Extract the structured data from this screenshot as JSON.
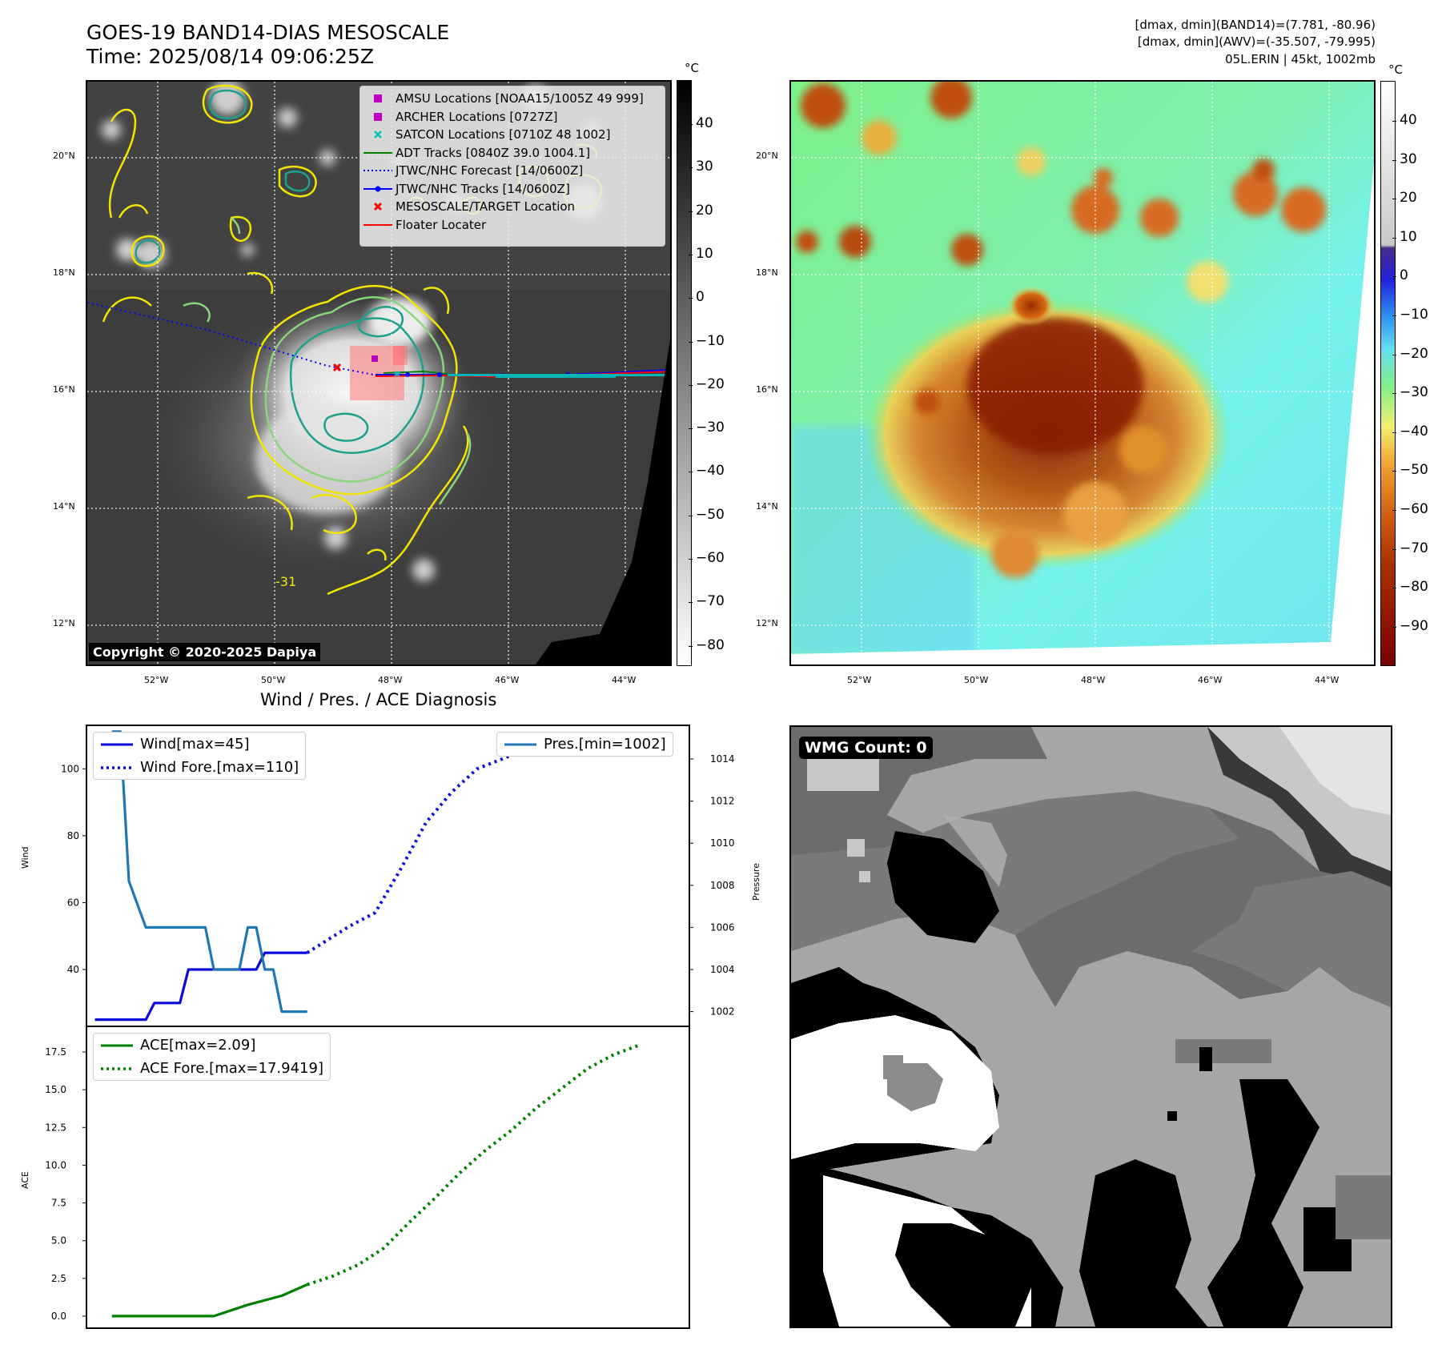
{
  "header": {
    "title_line1": "GOES-19 BAND14-DIAS MESOSCALE",
    "title_line2": "Time: 2025/08/14 09:06:25Z",
    "right_line1": "[dmax, dmin](BAND14)=(7.781, -80.96)",
    "right_line2": "[dmax, dmin](AWV)=(-35.507, -79.995)",
    "right_line3": "05L.ERIN | 45kt, 1002mb"
  },
  "map": {
    "lat_labels": [
      "20°N",
      "18°N",
      "16°N",
      "14°N",
      "12°N"
    ],
    "lon_labels": [
      "52°W",
      "50°W",
      "48°W",
      "46°W",
      "44°W"
    ],
    "copyright": "Copyright © 2020-2025 Dapiya",
    "contour_label": "-31",
    "legend": [
      {
        "label": "AMSU Locations [NOAA15/1005Z 49 999]",
        "color": "#c000c0",
        "symbol": "square"
      },
      {
        "label": "ARCHER Locations [0727Z]",
        "color": "#c000c0",
        "symbol": "square"
      },
      {
        "label": "SATCON Locations [0710Z 48 1002]",
        "color": "#00c0c0",
        "symbol": "x"
      },
      {
        "label": "ADT Tracks [0840Z 39.0 1004.1]",
        "color": "#008000",
        "symbol": "line"
      },
      {
        "label": "JTWC/NHC Forecast [14/0600Z]",
        "color": "#0000ff",
        "symbol": "dotted"
      },
      {
        "label": "JTWC/NHC Tracks [14/0600Z]",
        "color": "#0000ff",
        "symbol": "line-dot"
      },
      {
        "label": "MESOSCALE/TARGET Location",
        "color": "#ff0000",
        "symbol": "x"
      },
      {
        "label": "Floater Locater",
        "color": "#ff0000",
        "symbol": "line"
      }
    ]
  },
  "colorbar_gray": {
    "unit": "°C",
    "ticks": [
      "40",
      "30",
      "20",
      "10",
      "0",
      "−10",
      "−20",
      "−30",
      "−40",
      "−50",
      "−60",
      "−70",
      "−80"
    ]
  },
  "colorbar_color": {
    "unit": "°C",
    "ticks": [
      "40",
      "30",
      "20",
      "10",
      "0",
      "−10",
      "−20",
      "−30",
      "−40",
      "−50",
      "−60",
      "−70",
      "−80",
      "−90"
    ]
  },
  "diag": {
    "title": "Wind / Pres. / ACE Diagnosis",
    "wind_ylabel": "Wind",
    "pres_ylabel": "Pressure",
    "ace_ylabel": "ACE",
    "wind_ticks": [
      "100",
      "80",
      "60",
      "40"
    ],
    "pres_ticks": [
      "1014",
      "1012",
      "1010",
      "1008",
      "1006",
      "1004",
      "1002"
    ],
    "ace_ticks": [
      "17.5",
      "15.0",
      "12.5",
      "10.0",
      "7.5",
      "5.0",
      "2.5",
      "0.0"
    ],
    "legend_wind": "Wind[max=45]",
    "legend_wind_fore": "Wind Fore.[max=110]",
    "legend_pres": "Pres.[min=1002]",
    "legend_ace": "ACE[max=2.09]",
    "legend_ace_fore": "ACE Fore.[max=17.9419]"
  },
  "wmg": {
    "label": "WMG Count: 0"
  },
  "chart_data": [
    {
      "type": "line",
      "title": "Wind / Pres. / ACE Diagnosis",
      "ylabel": "Wind",
      "y2label": "Pressure",
      "ylim": [
        23,
        113
      ],
      "y2lim": [
        1001.3,
        1015.6
      ],
      "series": [
        {
          "name": "Wind[max=45]",
          "axis": "left",
          "color": "#0a0ad8",
          "style": "solid",
          "x": [
            0,
            1,
            2,
            3,
            4,
            5,
            6,
            7,
            8,
            9,
            10,
            11,
            12,
            13,
            14,
            15,
            16,
            17,
            18,
            19,
            20,
            21,
            22,
            23,
            24,
            25
          ],
          "y": [
            25,
            25,
            25,
            25,
            25,
            25,
            25,
            30,
            30,
            30,
            30,
            40,
            40,
            40,
            40,
            40,
            40,
            40,
            40,
            40,
            45,
            45,
            45,
            45,
            45,
            45
          ]
        },
        {
          "name": "Wind Fore.[max=110]",
          "axis": "left",
          "color": "#0a0ad8",
          "style": "dotted",
          "x": [
            25,
            30,
            33,
            36,
            39,
            42,
            45,
            48,
            51,
            54,
            56,
            59,
            62,
            65,
            67
          ],
          "y": [
            45,
            53,
            57,
            70,
            84,
            93,
            100,
            103,
            106,
            108,
            108,
            109,
            110,
            110,
            110
          ]
        },
        {
          "name": "Pres.[min=1002]",
          "axis": "right",
          "color": "#1f77b4",
          "style": "solid",
          "x": [
            2,
            3,
            4,
            6,
            8,
            10,
            12,
            13,
            14,
            15,
            16,
            17,
            18,
            19,
            20,
            21,
            22,
            23,
            24,
            25
          ],
          "y": [
            1015.3,
            1015.3,
            1008.2,
            1006,
            1006,
            1006,
            1006,
            1006,
            1004,
            1004,
            1004,
            1004,
            1006,
            1006,
            1004,
            1004,
            1002,
            1002,
            1002,
            1002
          ]
        }
      ]
    },
    {
      "type": "line",
      "ylabel": "ACE",
      "ylim": [
        -0.8,
        19.2
      ],
      "series": [
        {
          "name": "ACE[max=2.09]",
          "color": "#008000",
          "style": "solid",
          "x": [
            2,
            6,
            10,
            14,
            18,
            22,
            25
          ],
          "y": [
            0,
            0,
            0,
            0,
            0.75,
            1.35,
            2.09
          ]
        },
        {
          "name": "ACE Fore.[max=17.9419]",
          "color": "#008000",
          "style": "dotted",
          "x": [
            25,
            28,
            31,
            34,
            37,
            40,
            43,
            46,
            49,
            52,
            55,
            58,
            61,
            64
          ],
          "y": [
            2.09,
            2.65,
            3.4,
            4.5,
            6.2,
            7.8,
            9.5,
            11.0,
            12.3,
            13.8,
            15.1,
            16.4,
            17.3,
            17.94
          ]
        }
      ]
    }
  ]
}
